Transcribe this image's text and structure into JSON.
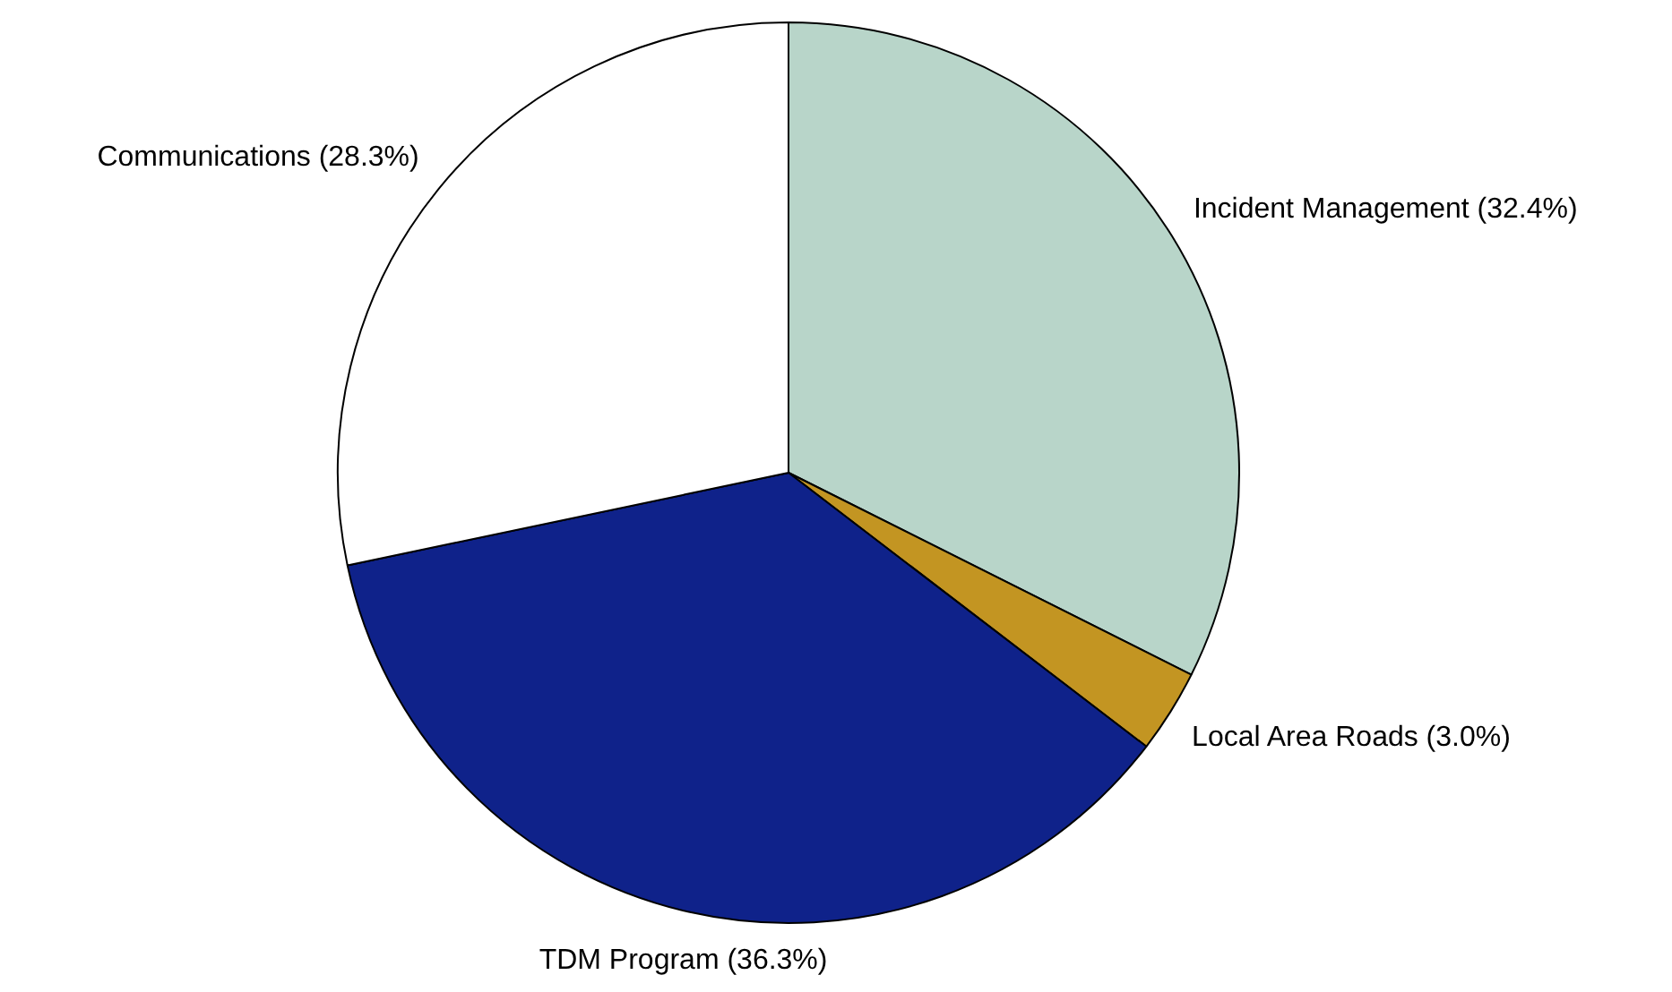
{
  "chart_data": {
    "type": "pie",
    "categories": [
      "Incident Management (32.4%)",
      "Local Area Roads (3.0%)",
      "TDM Program (36.3%)",
      "Communications (28.3%)"
    ],
    "values": [
      32.4,
      3.0,
      36.3,
      28.3
    ],
    "colors": [
      "#b8d5c9",
      "#c39522",
      "#0f228a",
      "#ffffff"
    ],
    "legend": false
  }
}
